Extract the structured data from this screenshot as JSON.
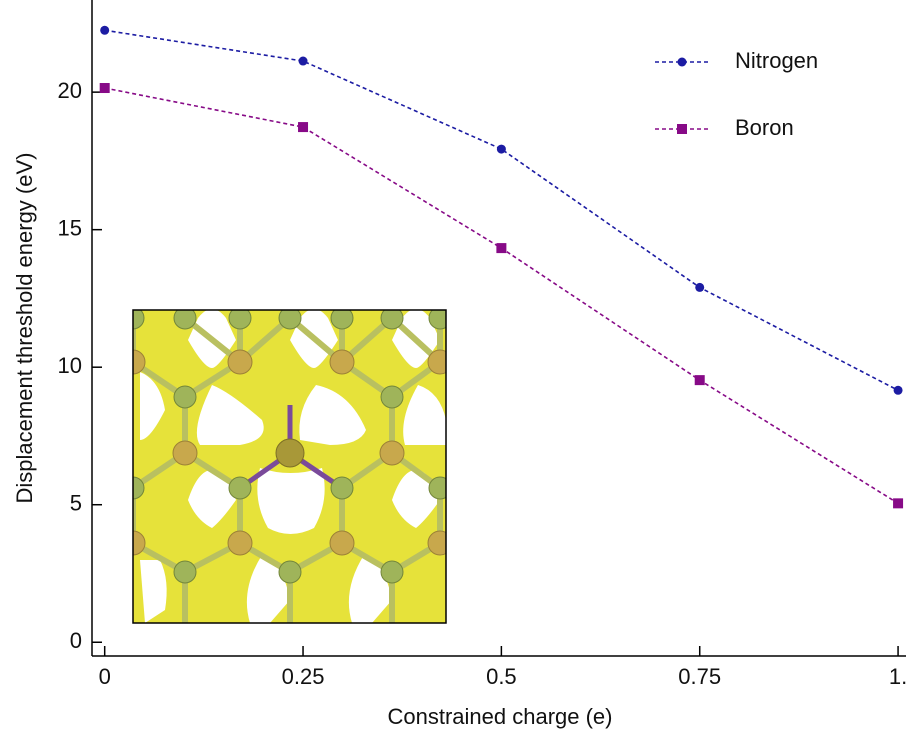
{
  "chart_data": {
    "type": "line",
    "xlabel": "Constrained charge (e)",
    "ylabel": "Displacement threshold energy (eV)",
    "x": [
      0,
      0.25,
      0.5,
      0.75,
      1
    ],
    "series": [
      {
        "name": "Nitrogen",
        "color": "#1c1ca3",
        "marker": "circle",
        "linestyle": "dashed",
        "values": [
          22.25,
          21.13,
          17.93,
          12.9,
          9.16
        ]
      },
      {
        "name": "Boron",
        "color": "#870a87",
        "marker": "square",
        "linestyle": "dashed",
        "values": [
          20.15,
          18.73,
          14.33,
          9.53,
          5.05
        ]
      }
    ],
    "xlim": [
      -0.016,
      1.01
    ],
    "ylim": [
      -0.5,
      23.35
    ],
    "xticks": [
      0,
      0.25,
      0.5,
      0.75,
      {
        "value": 1,
        "label": "1."
      }
    ],
    "yticks": [
      0,
      5,
      10,
      15,
      20
    ],
    "legend": "upper right"
  }
}
